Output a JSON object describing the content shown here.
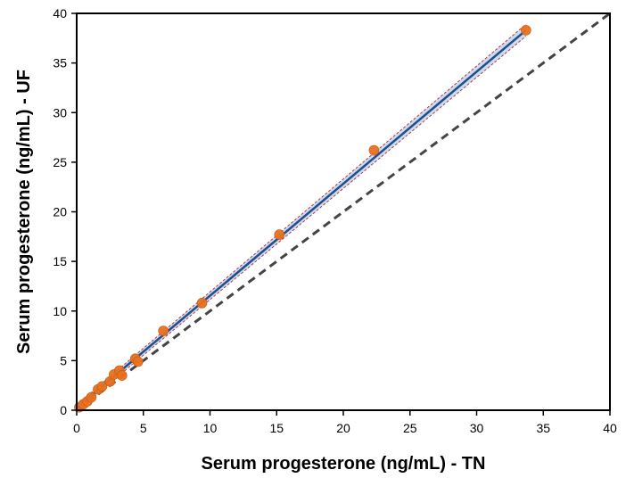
{
  "chart_data": {
    "type": "scatter",
    "title": "",
    "xlabel": "Serum progesterone (ng/mL) - TN",
    "ylabel": "Serum progesterone (ng/mL) - UF",
    "xlim": [
      0,
      40
    ],
    "ylim": [
      0,
      40
    ],
    "xticks": [
      0,
      5,
      10,
      15,
      20,
      25,
      30,
      35,
      40
    ],
    "yticks": [
      0,
      5,
      10,
      15,
      20,
      25,
      30,
      35,
      40
    ],
    "grid": false,
    "series": [
      {
        "name": "samples",
        "kind": "points",
        "color": "#e8711f",
        "points": [
          {
            "x": 0.2,
            "y": 0.3
          },
          {
            "x": 0.5,
            "y": 0.6
          },
          {
            "x": 0.8,
            "y": 0.9
          },
          {
            "x": 1.1,
            "y": 1.3
          },
          {
            "x": 1.6,
            "y": 2.1
          },
          {
            "x": 1.9,
            "y": 2.4
          },
          {
            "x": 2.5,
            "y": 2.9
          },
          {
            "x": 2.8,
            "y": 3.6
          },
          {
            "x": 3.2,
            "y": 4.0
          },
          {
            "x": 3.4,
            "y": 3.5
          },
          {
            "x": 4.4,
            "y": 5.2
          },
          {
            "x": 4.6,
            "y": 4.9
          },
          {
            "x": 6.5,
            "y": 8.0
          },
          {
            "x": 9.4,
            "y": 10.8
          },
          {
            "x": 15.2,
            "y": 17.7
          },
          {
            "x": 22.3,
            "y": 26.2
          },
          {
            "x": 33.7,
            "y": 38.3
          }
        ]
      },
      {
        "name": "regression fit",
        "kind": "line",
        "color": "#1f4e8c",
        "x": [
          0,
          33.7
        ],
        "y": [
          0.25,
          38.3
        ]
      },
      {
        "name": "confidence band",
        "kind": "band",
        "color": "#9bb7dd",
        "x": [
          0,
          33.7
        ],
        "upper": [
          0.55,
          38.9
        ],
        "lower": [
          -0.05,
          37.7
        ]
      },
      {
        "name": "identity line",
        "kind": "dashed-line",
        "color": "#444444",
        "x": [
          0,
          40
        ],
        "y": [
          0,
          40
        ]
      }
    ]
  }
}
